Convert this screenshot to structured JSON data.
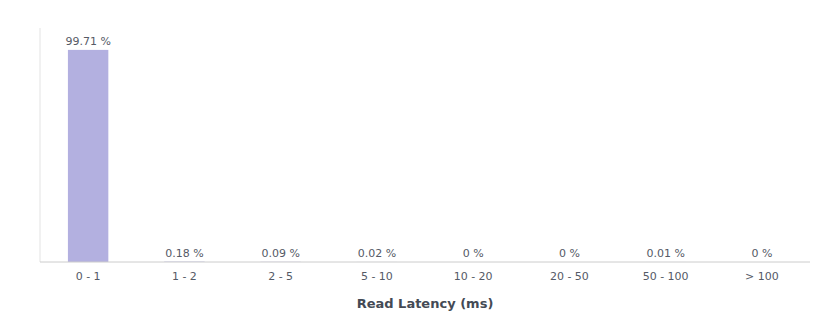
{
  "chart_data": {
    "type": "bar",
    "categories": [
      "0 - 1",
      "1 - 2",
      "2 - 5",
      "5 - 10",
      "10 - 20",
      "20 - 50",
      "50 - 100",
      "> 100"
    ],
    "values": [
      99.71,
      0.18,
      0.09,
      0.02,
      0.0,
      0.0,
      0.01,
      0.0
    ],
    "value_labels": [
      "99.71 %",
      "0.18 %",
      "0.09 %",
      "0.02 %",
      "0 %",
      "0 %",
      "0.01 %",
      "0 %"
    ],
    "color": "#b3b0e0",
    "xlabel": "Read Latency (ms)",
    "ylim": [
      0,
      110
    ],
    "grid": false,
    "tick_labels": "x",
    "data_labels": true
  }
}
